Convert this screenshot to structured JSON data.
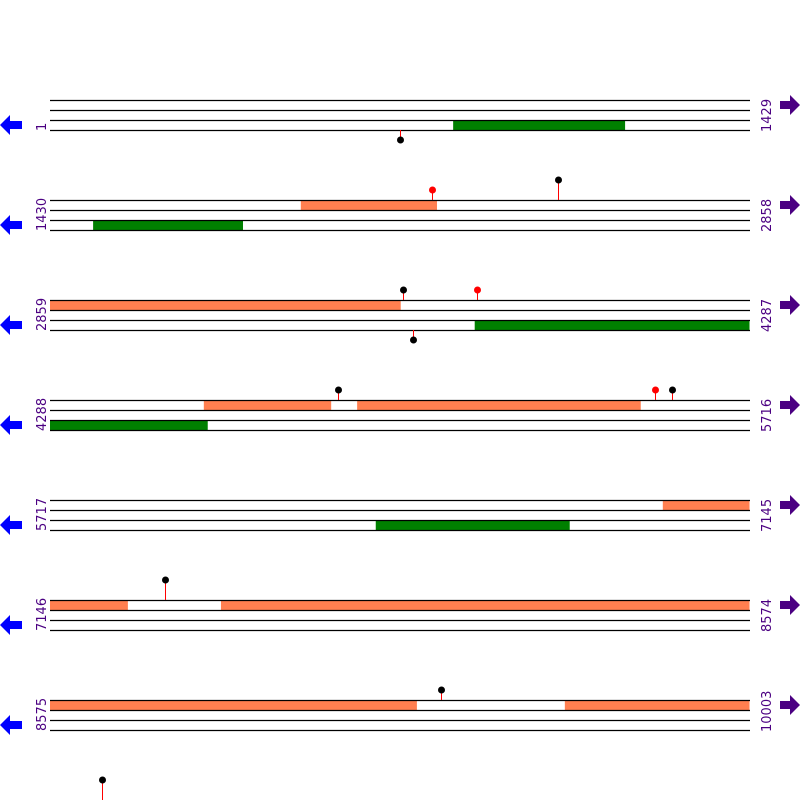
{
  "colors": {
    "line": "#000000",
    "forward_feature": "#FF7F50",
    "reverse_feature": "#008000",
    "stick": "#FF0000",
    "lollipop_black": "#000000",
    "lollipop_red": "#FF0000",
    "left_arrow": "#0000FF",
    "right_arrow": "#4B0082",
    "label": "#4B0082"
  },
  "bases_per_row": 1429,
  "rows": [
    {
      "start": "1",
      "end": "1429",
      "start_bp": 1,
      "features": [
        {
          "strand": "reverse",
          "from": 824,
          "to": 1175
        }
      ],
      "lollipops": [
        {
          "pos": 715,
          "side": "down",
          "color": "black",
          "level": 1
        }
      ]
    },
    {
      "start": "1430",
      "end": "2858",
      "start_bp": 1430,
      "features": [
        {
          "strand": "forward",
          "from": 1942,
          "to": 2220
        },
        {
          "strand": "reverse",
          "from": 1518,
          "to": 1824
        }
      ],
      "lollipops": [
        {
          "pos": 2210,
          "side": "up",
          "color": "red",
          "level": 1
        },
        {
          "pos": 2467,
          "side": "up",
          "color": "black",
          "level": 2
        }
      ]
    },
    {
      "start": "2859",
      "end": "4287",
      "start_bp": 2859,
      "features": [
        {
          "strand": "forward",
          "from": 2859,
          "to": 3575
        },
        {
          "strand": "reverse",
          "from": 3726,
          "to": 4287
        }
      ],
      "lollipops": [
        {
          "pos": 3579,
          "side": "up",
          "color": "black",
          "level": 1
        },
        {
          "pos": 3731,
          "side": "up",
          "color": "red",
          "level": 1
        },
        {
          "pos": 3600,
          "side": "down",
          "color": "black",
          "level": 1
        }
      ]
    },
    {
      "start": "4288",
      "end": "5716",
      "start_bp": 4288,
      "features": [
        {
          "strand": "forward",
          "from": 4602,
          "to": 4862
        },
        {
          "strand": "forward",
          "from": 4915,
          "to": 5494
        },
        {
          "strand": "reverse",
          "from": 4288,
          "to": 4610
        }
      ],
      "lollipops": [
        {
          "pos": 4876,
          "side": "up",
          "color": "black",
          "level": 1
        },
        {
          "pos": 5523,
          "side": "up",
          "color": "red",
          "level": 1
        },
        {
          "pos": 5558,
          "side": "up",
          "color": "black",
          "level": 1
        }
      ]
    },
    {
      "start": "5717",
      "end": "7145",
      "start_bp": 5717,
      "features": [
        {
          "strand": "forward",
          "from": 6968,
          "to": 7145
        },
        {
          "strand": "reverse",
          "from": 6382,
          "to": 6778
        }
      ],
      "lollipops": []
    },
    {
      "start": "7146",
      "end": "8574",
      "start_bp": 7146,
      "features": [
        {
          "strand": "forward",
          "from": 7146,
          "to": 7305
        },
        {
          "strand": "forward",
          "from": 7495,
          "to": 8574
        }
      ],
      "lollipops": [
        {
          "pos": 7381,
          "side": "up",
          "color": "black",
          "level": 2
        }
      ]
    },
    {
      "start": "8575",
      "end": "10003",
      "start_bp": 8575,
      "features": [
        {
          "strand": "forward",
          "from": 8575,
          "to": 9324
        },
        {
          "strand": "forward",
          "from": 9626,
          "to": 10003
        }
      ],
      "lollipops": [
        {
          "pos": 9373,
          "side": "up",
          "color": "black",
          "level": 1
        }
      ]
    },
    {
      "start_bp": 10004,
      "features": [],
      "lollipops": [
        {
          "pos": 10110,
          "side": "up",
          "color": "black",
          "level": 2
        }
      ]
    }
  ]
}
